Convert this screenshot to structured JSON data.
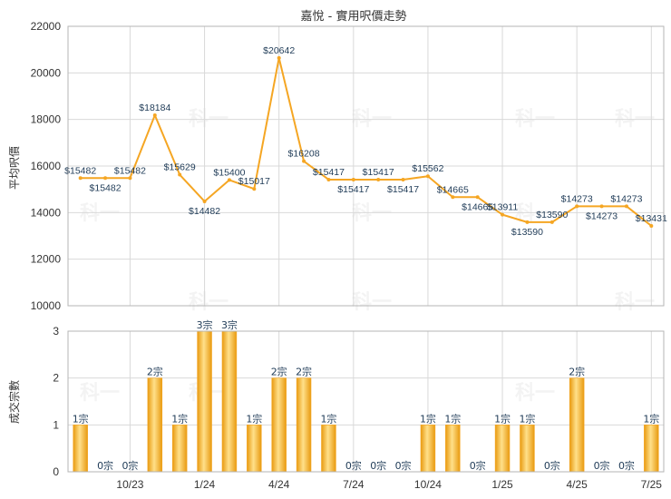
{
  "chart_data": [
    {
      "type": "line",
      "title": "嘉悅 - 實用呎價走勢",
      "ylabel": "平均呎價",
      "ylim": [
        10000,
        22000
      ],
      "yticks": [
        10000,
        12000,
        14000,
        16000,
        18000,
        20000,
        22000
      ],
      "color": "#f5a623",
      "grid": true,
      "points": [
        {
          "x": 0,
          "y": 15482,
          "label": "$15482"
        },
        {
          "x": 1,
          "y": 15482,
          "label": "$15482"
        },
        {
          "x": 2,
          "y": 15482,
          "label": "$15482"
        },
        {
          "x": 3,
          "y": 18184,
          "label": "$18184"
        },
        {
          "x": 4,
          "y": 15629,
          "label": "$15629"
        },
        {
          "x": 5,
          "y": 14482,
          "label": "$14482"
        },
        {
          "x": 6,
          "y": 15400,
          "label": "$15400"
        },
        {
          "x": 7,
          "y": 15017,
          "label": "$15017"
        },
        {
          "x": 8,
          "y": 20642,
          "label": "$20642"
        },
        {
          "x": 9,
          "y": 16208,
          "label": "$16208"
        },
        {
          "x": 10,
          "y": 15417,
          "label": "$15417"
        },
        {
          "x": 11,
          "y": 15417,
          "label": "$15417"
        },
        {
          "x": 12,
          "y": 15417,
          "label": "$15417"
        },
        {
          "x": 13,
          "y": 15417,
          "label": "$15417"
        },
        {
          "x": 14,
          "y": 15562,
          "label": "$15562"
        },
        {
          "x": 15,
          "y": 14665,
          "label": "$14665"
        },
        {
          "x": 16,
          "y": 14665,
          "label": "$14665"
        },
        {
          "x": 17,
          "y": 13911,
          "label": "$13911"
        },
        {
          "x": 18,
          "y": 13590,
          "label": "$13590"
        },
        {
          "x": 19,
          "y": 13590,
          "label": "$13590"
        },
        {
          "x": 20,
          "y": 14273,
          "label": "$14273"
        },
        {
          "x": 21,
          "y": 14273,
          "label": "$14273"
        },
        {
          "x": 22,
          "y": 14273,
          "label": "$14273"
        },
        {
          "x": 23,
          "y": 13431,
          "label": "$13431"
        }
      ]
    },
    {
      "type": "bar",
      "ylabel": "成交宗數",
      "ylim": [
        0,
        3
      ],
      "yticks": [
        0,
        1,
        2,
        3
      ],
      "color": "#f5a623",
      "grid": true,
      "values": [
        1,
        0,
        0,
        2,
        1,
        3,
        3,
        1,
        2,
        2,
        1,
        0,
        0,
        0,
        1,
        1,
        0,
        1,
        1,
        0,
        2,
        0,
        0,
        1
      ],
      "value_labels": [
        "1宗",
        "0宗",
        "0宗",
        "2宗",
        "1宗",
        "3宗",
        "3宗",
        "1宗",
        "2宗",
        "2宗",
        "1宗",
        "0宗",
        "0宗",
        "0宗",
        "1宗",
        "1宗",
        "0宗",
        "1宗",
        "1宗",
        "0宗",
        "2宗",
        "0宗",
        "0宗",
        "1宗"
      ],
      "xticks": [
        {
          "index": 2,
          "label": "10/23"
        },
        {
          "index": 5,
          "label": "1/24"
        },
        {
          "index": 8,
          "label": "4/24"
        },
        {
          "index": 11,
          "label": "7/24"
        },
        {
          "index": 14,
          "label": "10/24"
        },
        {
          "index": 17,
          "label": "1/25"
        },
        {
          "index": 20,
          "label": "4/25"
        },
        {
          "index": 23,
          "label": "7/25"
        }
      ]
    }
  ],
  "watermark": "科一"
}
